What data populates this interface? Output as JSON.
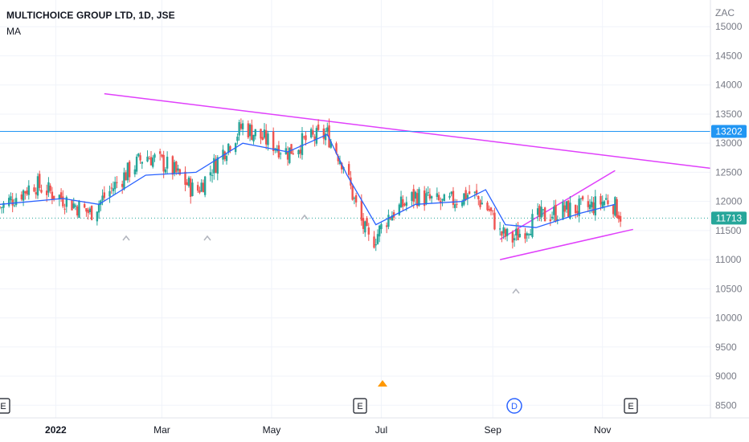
{
  "header": {
    "symbol": "MULTICHOICE GROUP LTD, 1D, JSE",
    "indicator": "MA"
  },
  "price_axis": {
    "currency": "ZAC",
    "ticks": [
      "15000",
      "14500",
      "14000",
      "13500",
      "13000",
      "12500",
      "12000",
      "11500",
      "11000",
      "10500",
      "10000",
      "9500",
      "9000",
      "8500"
    ]
  },
  "time_axis": {
    "ticks": [
      "2022",
      "Mar",
      "May",
      "Jul",
      "Sep",
      "Nov"
    ]
  },
  "price_labels": {
    "hline_value": "13202",
    "last_price": "11713"
  },
  "events": [
    {
      "kind": "earnings",
      "label": "E"
    },
    {
      "kind": "earnings",
      "label": "E"
    },
    {
      "kind": "dividend",
      "label": "D"
    },
    {
      "kind": "earnings",
      "label": "E"
    }
  ],
  "colors": {
    "up": "#26a69a",
    "down": "#ef5350",
    "ma": "#2962ff",
    "trendline": "#e040fb",
    "hline": "#2196f3",
    "last_price": "#26a69a",
    "grid": "#f0f3fa",
    "marker": "#b2b5be",
    "signal": "#ff9800"
  },
  "chart_data": {
    "type": "candlestick",
    "title": "MULTICHOICE GROUP LTD, 1D, JSE",
    "unit": "ZAC",
    "ylim": [
      8200,
      15100
    ],
    "log_scale": false,
    "grid": true,
    "x_range": [
      "2021-12-01",
      "2022-12-31"
    ],
    "price_series": [
      {
        "date": "2021-12-01",
        "close": 11900
      },
      {
        "date": "2021-12-20",
        "close": 12300
      },
      {
        "date": "2022-01-05",
        "close": 12050
      },
      {
        "date": "2022-01-20",
        "close": 11800
      },
      {
        "date": "2022-02-05",
        "close": 12350
      },
      {
        "date": "2022-02-20",
        "close": 12800
      },
      {
        "date": "2022-03-05",
        "close": 12600
      },
      {
        "date": "2022-03-20",
        "close": 12150
      },
      {
        "date": "2022-04-05",
        "close": 12900
      },
      {
        "date": "2022-04-15",
        "close": 13300
      },
      {
        "date": "2022-04-25",
        "close": 13100
      },
      {
        "date": "2022-05-10",
        "close": 12850
      },
      {
        "date": "2022-05-20",
        "close": 13050
      },
      {
        "date": "2022-06-01",
        "close": 13150
      },
      {
        "date": "2022-06-10",
        "close": 12650
      },
      {
        "date": "2022-06-18",
        "close": 11800
      },
      {
        "date": "2022-06-25",
        "close": 11250
      },
      {
        "date": "2022-07-05",
        "close": 11750
      },
      {
        "date": "2022-07-20",
        "close": 12100
      },
      {
        "date": "2022-08-05",
        "close": 11950
      },
      {
        "date": "2022-08-20",
        "close": 12150
      },
      {
        "date": "2022-08-30",
        "close": 11850
      },
      {
        "date": "2022-09-05",
        "close": 11450
      },
      {
        "date": "2022-09-12",
        "close": 11350
      },
      {
        "date": "2022-09-25",
        "close": 11700
      },
      {
        "date": "2022-10-10",
        "close": 11850
      },
      {
        "date": "2022-10-25",
        "close": 11900
      },
      {
        "date": "2022-11-05",
        "close": 12050
      },
      {
        "date": "2022-11-12",
        "close": 11713
      }
    ],
    "moving_average": [
      {
        "date": "2021-12-01",
        "value": 11950
      },
      {
        "date": "2022-01-05",
        "value": 12050
      },
      {
        "date": "2022-01-25",
        "value": 11950
      },
      {
        "date": "2022-02-20",
        "value": 12450
      },
      {
        "date": "2022-03-20",
        "value": 12500
      },
      {
        "date": "2022-04-15",
        "value": 13000
      },
      {
        "date": "2022-05-10",
        "value": 12850
      },
      {
        "date": "2022-06-01",
        "value": 13150
      },
      {
        "date": "2022-06-12",
        "value": 12450
      },
      {
        "date": "2022-06-28",
        "value": 11600
      },
      {
        "date": "2022-07-20",
        "value": 11950
      },
      {
        "date": "2022-08-15",
        "value": 12000
      },
      {
        "date": "2022-08-28",
        "value": 12200
      },
      {
        "date": "2022-09-08",
        "value": 11600
      },
      {
        "date": "2022-09-25",
        "value": 11550
      },
      {
        "date": "2022-10-20",
        "value": 11800
      },
      {
        "date": "2022-11-08",
        "value": 11950
      }
    ],
    "trendlines": [
      {
        "from": {
          "date": "2022-01-28",
          "value": 13850
        },
        "to": {
          "date": "2022-12-31",
          "value": 12570
        }
      },
      {
        "from": {
          "date": "2022-09-05",
          "value": 11000
        },
        "to": {
          "date": "2022-11-18",
          "value": 11520
        }
      },
      {
        "from": {
          "date": "2022-09-05",
          "value": 11350
        },
        "to": {
          "date": "2022-11-08",
          "value": 12530
        }
      }
    ],
    "horizontal_lines": [
      {
        "value": 13202
      }
    ],
    "last_price": 11713
  }
}
